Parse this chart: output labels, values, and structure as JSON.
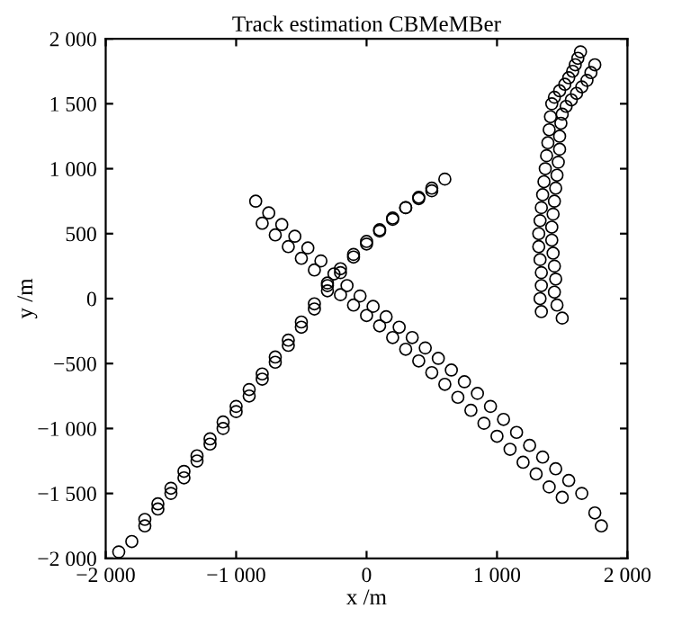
{
  "chart_data": {
    "type": "scatter",
    "title": "Track estimation CBMeMBer",
    "xlabel": "x /m",
    "ylabel": "y /m",
    "marker": "circle",
    "grid": false,
    "legend": false,
    "xlim": [
      -2000,
      2000
    ],
    "ylim": [
      -2000,
      2000
    ],
    "xticks": [
      {
        "value": -2000,
        "label": "−2 000"
      },
      {
        "value": -1000,
        "label": "−1 000"
      },
      0,
      {
        "value": 1000,
        "label": "1 000"
      },
      {
        "value": 2000,
        "label": "2 000"
      }
    ],
    "yticks": [
      {
        "value": -2000,
        "label": "−2 000"
      },
      {
        "value": -1500,
        "label": "−1 500"
      },
      {
        "value": -1000,
        "label": "−1 000"
      },
      {
        "value": -500,
        "label": "−500"
      },
      0,
      500,
      {
        "value": 1000,
        "label": "1 000"
      },
      {
        "value": 1500,
        "label": "1 500"
      },
      {
        "value": 2000,
        "label": "2 000"
      }
    ],
    "series": [
      {
        "color": "#000000",
        "x": [
          -1900,
          -1800,
          -1700,
          -1600,
          -1500,
          -1400,
          -1300,
          -1200,
          -1100,
          -1000,
          -900,
          -800,
          -700,
          -600,
          -500,
          -400,
          -300,
          -200,
          -100,
          0,
          100,
          200,
          300,
          400,
          500,
          600
        ],
        "values": [
          -1950,
          -1870,
          -1750,
          -1620,
          -1500,
          -1380,
          -1250,
          -1120,
          -1000,
          -870,
          -750,
          -620,
          -490,
          -360,
          -220,
          -80,
          60,
          200,
          320,
          420,
          520,
          610,
          700,
          780,
          850,
          920
        ]
      },
      {
        "color": "#000000",
        "x": [
          -1700,
          -1600,
          -1500,
          -1400,
          -1300,
          -1200,
          -1100,
          -1000,
          -900,
          -800,
          -700,
          -600,
          -500,
          -400,
          -300,
          -200,
          -100,
          0,
          100,
          200,
          300,
          400,
          500
        ],
        "values": [
          -1700,
          -1580,
          -1460,
          -1330,
          -1210,
          -1080,
          -950,
          -830,
          -700,
          -580,
          -450,
          -320,
          -180,
          -40,
          100,
          230,
          340,
          440,
          530,
          620,
          700,
          770,
          830
        ]
      },
      {
        "color": "#000000",
        "x": [
          -850,
          -750,
          -650,
          -550,
          -450,
          -350,
          -250,
          -150,
          -50,
          50,
          150,
          250,
          350,
          450,
          550,
          650,
          750,
          850,
          950,
          1050,
          1150,
          1250,
          1350,
          1450,
          1550,
          1650,
          1750,
          1800
        ],
        "values": [
          750,
          660,
          570,
          480,
          390,
          290,
          190,
          100,
          20,
          -60,
          -140,
          -220,
          -300,
          -380,
          -460,
          -550,
          -640,
          -730,
          -830,
          -930,
          -1030,
          -1130,
          -1220,
          -1310,
          -1400,
          -1500,
          -1650,
          -1750
        ]
      },
      {
        "color": "#000000",
        "x": [
          -800,
          -700,
          -600,
          -500,
          -400,
          -300,
          -200,
          -100,
          0,
          100,
          200,
          300,
          400,
          500,
          600,
          700,
          800,
          900,
          1000,
          1100,
          1200,
          1300,
          1400,
          1500
        ],
        "values": [
          580,
          490,
          400,
          310,
          220,
          120,
          30,
          -50,
          -130,
          -210,
          -300,
          -390,
          -480,
          -570,
          -660,
          -760,
          -860,
          -960,
          -1060,
          -1160,
          -1260,
          -1350,
          -1450,
          -1530
        ]
      },
      {
        "color": "#000000",
        "x": [
          1340,
          1330,
          1340,
          1340,
          1330,
          1320,
          1320,
          1330,
          1340,
          1350,
          1360,
          1370,
          1380,
          1390,
          1400,
          1410,
          1420,
          1440,
          1480,
          1520,
          1550,
          1580,
          1600,
          1620,
          1640
        ],
        "values": [
          -100,
          0,
          100,
          200,
          300,
          400,
          500,
          600,
          700,
          800,
          900,
          1000,
          1100,
          1200,
          1300,
          1400,
          1500,
          1550,
          1600,
          1650,
          1700,
          1750,
          1800,
          1850,
          1900
        ]
      },
      {
        "color": "#000000",
        "x": [
          1500,
          1460,
          1440,
          1450,
          1440,
          1430,
          1420,
          1420,
          1430,
          1440,
          1450,
          1460,
          1470,
          1480,
          1480,
          1490,
          1500,
          1530,
          1570,
          1610,
          1650,
          1690,
          1720,
          1750
        ],
        "values": [
          -150,
          -50,
          50,
          150,
          250,
          350,
          450,
          550,
          650,
          750,
          850,
          950,
          1050,
          1150,
          1250,
          1350,
          1420,
          1480,
          1530,
          1580,
          1630,
          1680,
          1740,
          1800
        ]
      }
    ]
  }
}
